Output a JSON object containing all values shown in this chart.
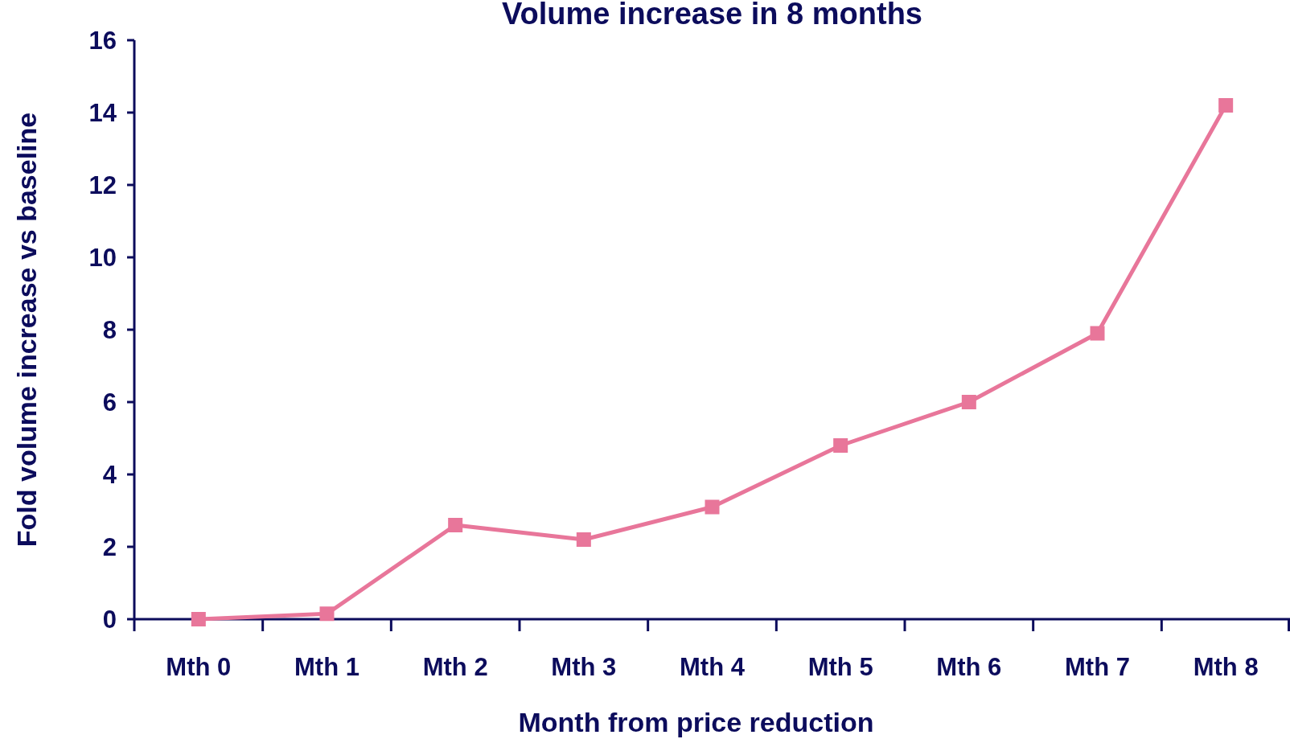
{
  "chart_data": {
    "type": "line",
    "title": "Volume increase in 8 months",
    "xlabel": "Month from price reduction",
    "ylabel": "Fold volume increase vs baseline",
    "categories": [
      "Mth 0",
      "Mth 1",
      "Mth 2",
      "Mth 3",
      "Mth 4",
      "Mth 5",
      "Mth 6",
      "Mth 7",
      "Mth 8"
    ],
    "series": [
      {
        "color": "#e8769a",
        "values": [
          0,
          0.15,
          2.6,
          2.2,
          3.1,
          4.8,
          6.0,
          7.9,
          14.2
        ]
      }
    ],
    "ylim": [
      0,
      16
    ],
    "yticks": [
      0,
      2,
      4,
      6,
      8,
      10,
      12,
      14,
      16
    ],
    "marker": "square",
    "line_style": "solid"
  }
}
